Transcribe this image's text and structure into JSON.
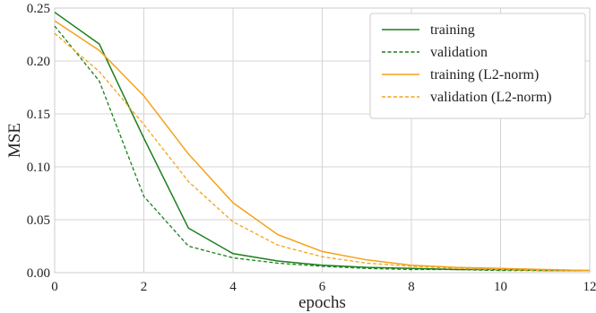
{
  "chart_data": {
    "type": "line",
    "title": "",
    "xlabel": "epochs",
    "ylabel": "MSE",
    "xlim": [
      0,
      12
    ],
    "ylim": [
      0,
      0.25
    ],
    "xticks": [
      0,
      2,
      4,
      6,
      8,
      10,
      12
    ],
    "xtick_labels": [
      "0",
      "2",
      "4",
      "6",
      "8",
      "10",
      "12"
    ],
    "yticks": [
      0,
      0.05,
      0.1,
      0.15,
      0.2,
      0.25
    ],
    "ytick_labels": [
      "0.00",
      "0.05",
      "0.10",
      "0.15",
      "0.20",
      "0.25"
    ],
    "grid": true,
    "legend_position": "top-right",
    "x": [
      0,
      1,
      2,
      3,
      4,
      5,
      6,
      7,
      8,
      9,
      10,
      11,
      12
    ],
    "series": [
      {
        "name": "training",
        "color": "#1a7f1a",
        "dash": "solid",
        "values": [
          0.246,
          0.216,
          0.127,
          0.042,
          0.018,
          0.011,
          0.007,
          0.005,
          0.004,
          0.003,
          0.003,
          0.002,
          0.002
        ]
      },
      {
        "name": "validation",
        "color": "#1a7f1a",
        "dash": "dashed",
        "values": [
          0.233,
          0.181,
          0.072,
          0.025,
          0.014,
          0.009,
          0.006,
          0.004,
          0.003,
          0.003,
          0.002,
          0.002,
          0.002
        ]
      },
      {
        "name": "training (L2-norm)",
        "color": "#f5a21a",
        "dash": "solid",
        "values": [
          0.238,
          0.21,
          0.167,
          0.112,
          0.066,
          0.036,
          0.02,
          0.012,
          0.007,
          0.005,
          0.004,
          0.003,
          0.002
        ]
      },
      {
        "name": "validation (L2-norm)",
        "color": "#f5a21a",
        "dash": "dashed",
        "values": [
          0.226,
          0.19,
          0.14,
          0.086,
          0.048,
          0.026,
          0.015,
          0.009,
          0.006,
          0.004,
          0.003,
          0.002,
          0.002
        ]
      }
    ]
  }
}
